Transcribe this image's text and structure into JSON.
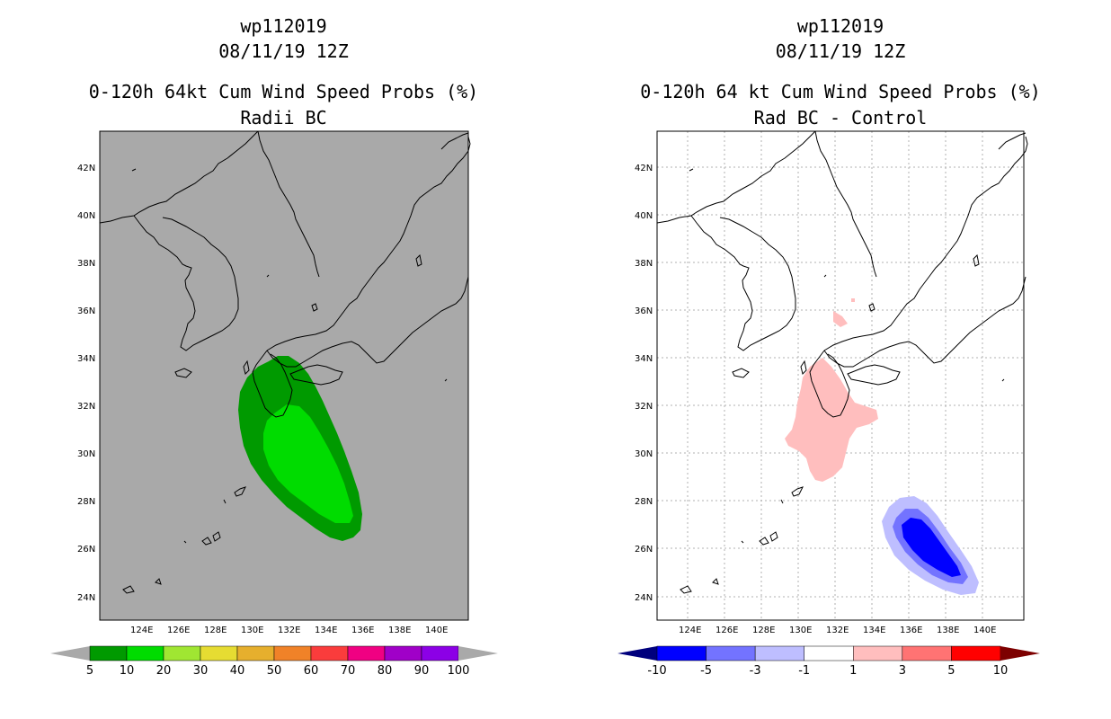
{
  "left_panel": {
    "title_line1": "wp112019",
    "title_line2": "08/11/19 12Z",
    "title_line3": "0-120h 64kt Cum Wind Speed Probs (%)",
    "title_line4": "Radii BC",
    "background_color": "#a9a9a9",
    "lat_labels": [
      "42N",
      "40N",
      "38N",
      "36N",
      "34N",
      "32N",
      "30N",
      "28N",
      "26N",
      "24N"
    ],
    "lon_labels": [
      "124E",
      "126E",
      "128E",
      "130E",
      "132E",
      "134E",
      "136E",
      "138E",
      "140E"
    ],
    "colorbar": {
      "labels": [
        "5",
        "10",
        "20",
        "30",
        "40",
        "50",
        "60",
        "70",
        "80",
        "90",
        "100"
      ],
      "colors": [
        "#009a00",
        "#00dc00",
        "#a0e632",
        "#e6dc32",
        "#e6af2d",
        "#f08228",
        "#fa3c3c",
        "#f00082",
        "#a000c8",
        "#8c00e6"
      ],
      "end_low": "#a9a9a9",
      "end_high": "#a9a9a9"
    }
  },
  "right_panel": {
    "title_line1": "wp112019",
    "title_line2": "08/11/19 12Z",
    "title_line3": "0-120h 64 kt Cum Wind Speed Probs (%)",
    "title_line4": "Rad BC - Control",
    "background_color": "#ffffff",
    "lat_labels": [
      "42N",
      "40N",
      "38N",
      "36N",
      "34N",
      "32N",
      "30N",
      "28N",
      "26N",
      "24N"
    ],
    "lon_labels": [
      "124E",
      "126E",
      "128E",
      "130E",
      "132E",
      "134E",
      "136E",
      "138E",
      "140E"
    ],
    "colorbar": {
      "labels": [
        "-10",
        "-5",
        "-3",
        "-1",
        "1",
        "3",
        "5",
        "10"
      ],
      "colors": [
        "#0000ff",
        "#7373ff",
        "#bebeff",
        "#ffffff",
        "#ffbebe",
        "#ff7373",
        "#ff0000"
      ],
      "end_low": "#00007d",
      "end_high": "#7d0000"
    }
  },
  "chart_data": [
    {
      "type": "map-contour",
      "title": "0-120h 64kt Cum Wind Speed Probs (%) Radii BC",
      "storm": "wp112019",
      "valid": "08/11/19 12Z",
      "lon_range": [
        122.5,
        141.3
      ],
      "lat_range": [
        23.0,
        43.5
      ],
      "levels": [
        5,
        10,
        20,
        30,
        40,
        50,
        60,
        70,
        80,
        90,
        100
      ],
      "regions": [
        {
          "level": "5-10",
          "color": "#009a00",
          "extent_lon": [
            129.9,
            135.8
          ],
          "extent_lat": [
            26.5,
            34.2
          ]
        },
        {
          "level": "10-20",
          "color": "#00dc00",
          "extent_lon": [
            130.4,
            135.0
          ],
          "extent_lat": [
            27.0,
            32.3
          ]
        }
      ]
    },
    {
      "type": "map-contour",
      "title": "0-120h 64 kt Cum Wind Speed Probs (%) Rad BC - Control",
      "storm": "wp112019",
      "valid": "08/11/19 12Z",
      "lon_range": [
        122.5,
        141.3
      ],
      "lat_range": [
        23.0,
        43.5
      ],
      "levels": [
        -10,
        -5,
        -3,
        -1,
        1,
        3,
        5,
        10
      ],
      "regions": [
        {
          "level": "1 to 3",
          "color": "#ffbebe",
          "extent_lon": [
            129.3,
            133.6
          ],
          "extent_lat": [
            28.9,
            34.3
          ]
        },
        {
          "level": "1 to 3",
          "color": "#ffbebe",
          "extent_lon": [
            131.5,
            132.2
          ],
          "extent_lat": [
            35.3,
            35.9
          ]
        },
        {
          "level": "-3 to -1",
          "color": "#bebeff",
          "extent_lon": [
            134.0,
            138.9
          ],
          "extent_lat": [
            24.4,
            28.1
          ]
        },
        {
          "level": "-5 to -3",
          "color": "#7373ff",
          "extent_lon": [
            134.5,
            138.2
          ],
          "extent_lat": [
            24.8,
            27.7
          ]
        },
        {
          "level": "-10 to -5",
          "color": "#0000ff",
          "extent_lon": [
            135.0,
            137.6
          ],
          "extent_lat": [
            25.0,
            27.3
          ]
        }
      ]
    }
  ]
}
